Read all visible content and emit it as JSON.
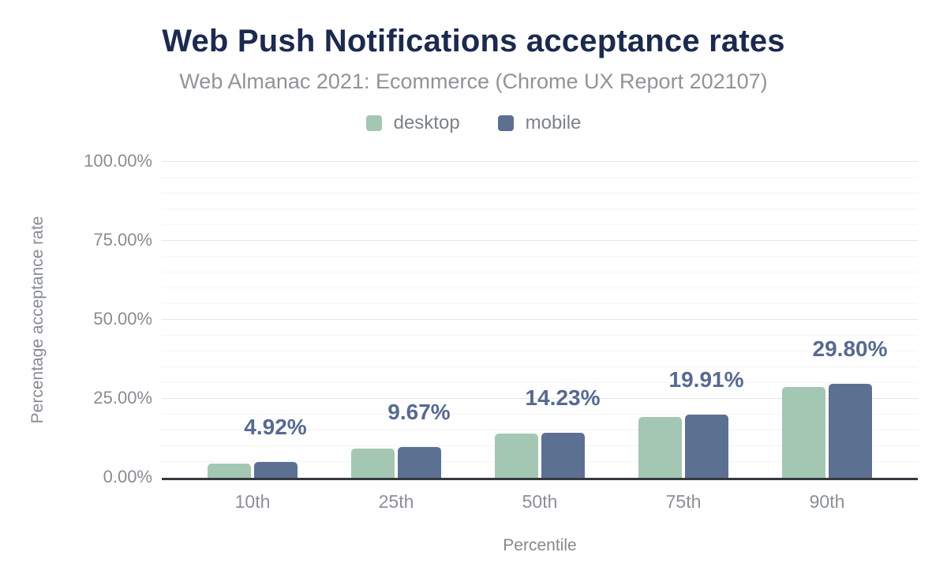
{
  "chart_data": {
    "type": "bar",
    "title": "Web Push Notifications acceptance rates",
    "subtitle": "Web Almanac 2021: Ecommerce (Chrome UX Report 202107)",
    "xlabel": "Percentile",
    "ylabel": "Percentage acceptance rate",
    "categories": [
      "10th",
      "25th",
      "50th",
      "75th",
      "90th"
    ],
    "series": [
      {
        "name": "desktop",
        "color": "#a3c7b3",
        "values": [
          4.5,
          9.35,
          14.0,
          19.35,
          28.7
        ]
      },
      {
        "name": "mobile",
        "color": "#5c7091",
        "values": [
          4.92,
          9.67,
          14.23,
          19.91,
          29.8
        ]
      }
    ],
    "data_labels": [
      "4.92%",
      "9.67%",
      "14.23%",
      "19.91%",
      "29.80%"
    ],
    "data_label_series": "mobile",
    "ylim": [
      0,
      100
    ],
    "yticks_desc": [
      "100.00%",
      "75.00%",
      "50.00%",
      "25.00%",
      "0.00%"
    ],
    "grid": {
      "minor_step_pct": 5,
      "major_step_pct": 25,
      "grid_on": true
    },
    "legend_position": "top",
    "data_label_color": "#576a90",
    "title_color": "#1b2a4e"
  }
}
